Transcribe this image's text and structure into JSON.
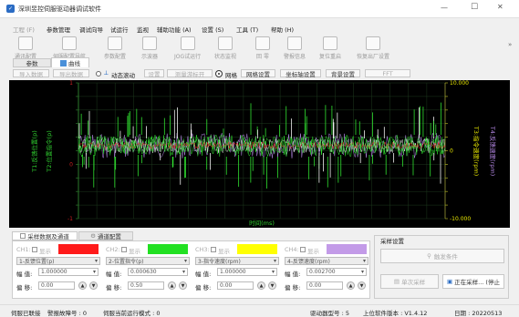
{
  "window": {
    "title": "深圳昱控伺服驱动器调试软件",
    "min": "—",
    "max": "☐",
    "close": "✕"
  },
  "menu": [
    "工程 (F)",
    "参数管理",
    "调试向导",
    "试运行",
    "监视",
    "辅助功能 (A)",
    "设置 (S)",
    "工具 (T)",
    "帮助 (H)"
  ],
  "toolbar": [
    "通讯配置",
    "伺服配置导航",
    "参数配置",
    "示波器",
    "JOG试运行",
    "状态监视",
    "回 零",
    "警报信息",
    "复位重启",
    "恢复出厂设置"
  ],
  "tabs": {
    "params": "参数",
    "curve": "曲线"
  },
  "scope_toolbar": {
    "import": "导入数据",
    "export": "导出数据",
    "dynamic_scroll": "动态滚动",
    "setting": "设置",
    "measure": "测量游标开",
    "grid": "网格",
    "grid_setting": "网格设置",
    "axis_setting": "坐标轴设置",
    "bg_setting": "背景设置",
    "fft": "FFT"
  },
  "plot": {
    "left_axis_label": "T1:反馈位置(p)",
    "left2_axis_label": "T2:位置指令(p)",
    "right_axis_label": "T3:指令速度(rpm)",
    "right2_axis_label": "T4:反馈速度(rpm)",
    "x_label": "时间(ms)",
    "left_ticks": [
      "1",
      "",
      "",
      "",
      "",
      "",
      "0",
      "",
      "",
      "",
      "-1"
    ],
    "right_ticks": [
      "10.000",
      "",
      "",
      "",
      "",
      "0",
      "",
      "",
      "",
      "",
      "-10.000"
    ],
    "colors": {
      "bg": "#000000",
      "grid": "#1e3a1e",
      "ch1": "#ff2020",
      "ch2": "#30e030",
      "ch3": "#ffff00",
      "ch4": "#b78ae8"
    }
  },
  "lower_tabs": {
    "data_channel": "采样数据及通道",
    "channel_config": "通道配置"
  },
  "channels": [
    {
      "id": "CH1:",
      "show": "显示",
      "color": "#ff1a1a",
      "source": "1-反馈位置(p)",
      "amp_label": "幅 值:",
      "amp": "1.000000",
      "off_label": "偏 移:",
      "off": "0.00"
    },
    {
      "id": "CH2:",
      "show": "显示",
      "color": "#22e022",
      "source": "2-位置指令(p)",
      "amp_label": "幅 值:",
      "amp": "0.000630",
      "off_label": "偏 移:",
      "off": "0.50"
    },
    {
      "id": "CH3:",
      "show": "显示",
      "color": "#ffff00",
      "source": "3-指令速度(rpm)",
      "amp_label": "幅 值:",
      "amp": "1.000000",
      "off_label": "偏 移:",
      "off": "0.00"
    },
    {
      "id": "CH4:",
      "show": "显示",
      "color": "#c39be8",
      "source": "4-反馈速度(rpm)",
      "amp_label": "幅 值:",
      "amp": "0.002700",
      "off_label": "偏 移:",
      "off": "0.00"
    }
  ],
  "sampling": {
    "title": "采样设置",
    "trigger": "触发条件",
    "single": "单次采样",
    "running": "正在采样... (停止"
  },
  "status": {
    "connected": "伺服已联接",
    "alarm": "警报故障号 : 0",
    "mode": "伺服当前运行模式 : 0",
    "model": "驱动器型号 : 5",
    "version": "上位软件版本 : V1.4.12",
    "date": "日期 : 20220513"
  }
}
